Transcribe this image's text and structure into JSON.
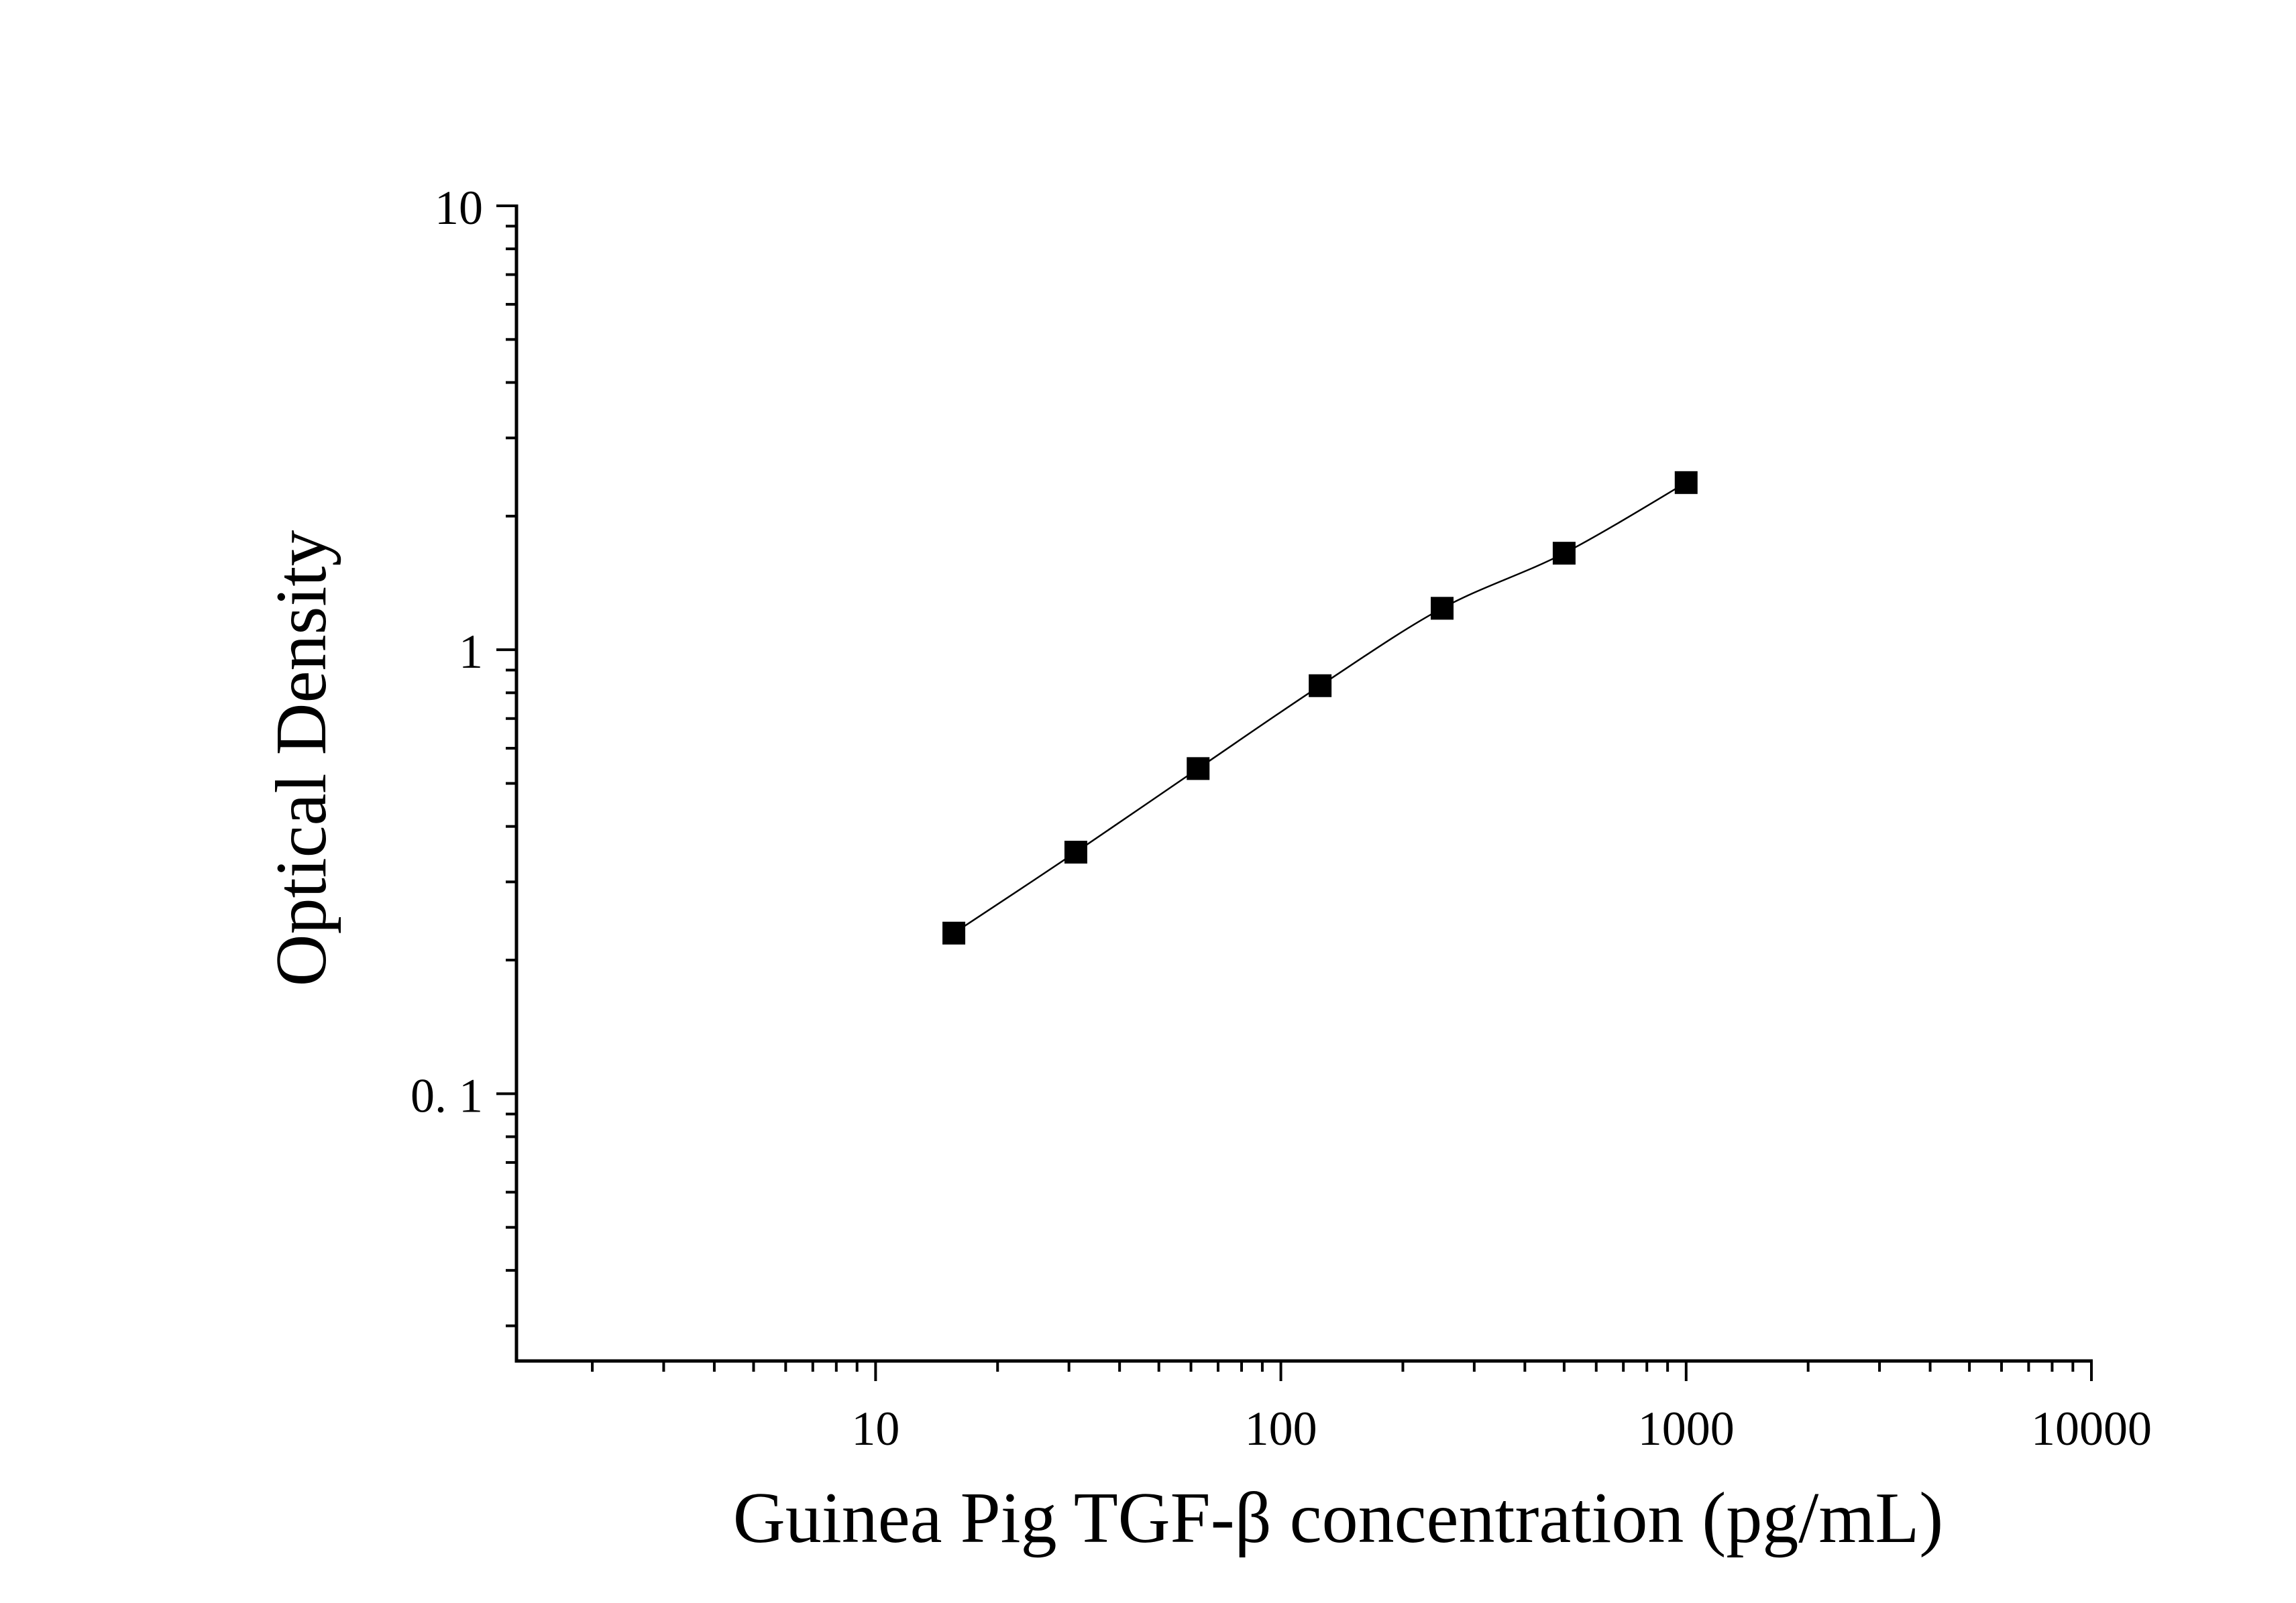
{
  "chart_data": {
    "type": "scatter",
    "xlabel": "Guinea Pig TGF-β concentration (pg/mL)",
    "ylabel": "Optical Density",
    "x_scale": "log",
    "y_scale": "log",
    "xlim": [
      1.3,
      10000
    ],
    "ylim": [
      0.025,
      10
    ],
    "x_ticks": [
      {
        "value": 10,
        "label": "10"
      },
      {
        "value": 100,
        "label": "100"
      },
      {
        "value": 1000,
        "label": "1000"
      },
      {
        "value": 10000,
        "label": "10000"
      }
    ],
    "y_ticks": [
      {
        "value": 0.1,
        "label": "0. 1"
      },
      {
        "value": 1,
        "label": "1"
      },
      {
        "value": 10,
        "label": "10"
      }
    ],
    "grid": false,
    "series": [
      {
        "x": [
          15.6,
          31.2,
          62.5,
          125,
          250,
          500,
          1000
        ],
        "y": [
          0.23,
          0.35,
          0.54,
          0.83,
          1.24,
          1.65,
          2.38
        ],
        "marker": "square",
        "line": "smooth",
        "color": "#000000"
      }
    ]
  }
}
